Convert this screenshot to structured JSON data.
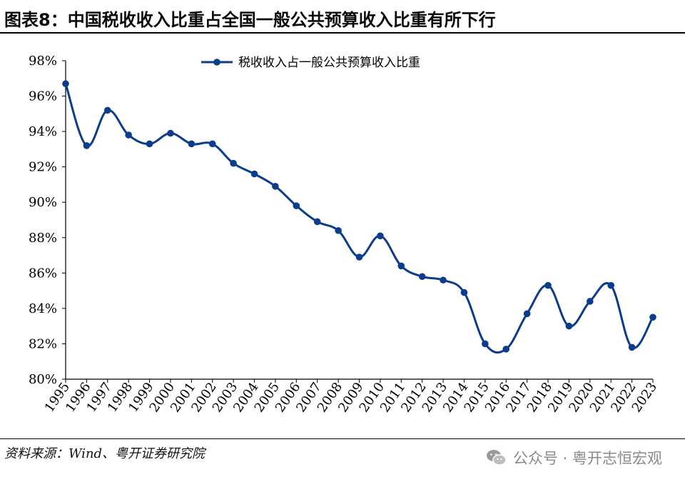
{
  "header": {
    "title": "图表8：中国税收收入比重占全国一般公共预算收入比重有所下行"
  },
  "footer": {
    "source": "资料来源：Wind、粤开证券研究院",
    "watermark": "公众号 · 粤开志恒宏观"
  },
  "colors": {
    "series": "#0b3d8c",
    "axis": "#000000"
  },
  "chart_data": {
    "type": "line",
    "title": "",
    "xlabel": "",
    "ylabel": "",
    "ylim": [
      80,
      98
    ],
    "y_ticks": [
      "80%",
      "82%",
      "84%",
      "86%",
      "88%",
      "90%",
      "92%",
      "94%",
      "96%",
      "98%"
    ],
    "y_tick_values": [
      80,
      82,
      84,
      86,
      88,
      90,
      92,
      94,
      96,
      98
    ],
    "grid": false,
    "legend_position": "top-center",
    "x": [
      "1995",
      "1996",
      "1997",
      "1998",
      "1999",
      "2000",
      "2001",
      "2002",
      "2003",
      "2004",
      "2005",
      "2006",
      "2007",
      "2008",
      "2009",
      "2010",
      "2011",
      "2012",
      "2013",
      "2014",
      "2015",
      "2016",
      "2017",
      "2018",
      "2019",
      "2020",
      "2021",
      "2022",
      "2023"
    ],
    "series": [
      {
        "name": "税收收入占一般公共预算收入比重",
        "values": [
          96.7,
          93.2,
          95.2,
          93.8,
          93.3,
          93.9,
          93.3,
          93.3,
          92.2,
          91.6,
          90.9,
          89.8,
          88.9,
          88.4,
          86.9,
          88.1,
          86.4,
          85.8,
          85.6,
          84.9,
          82.0,
          81.7,
          83.7,
          85.3,
          83.0,
          84.4,
          85.3,
          81.8,
          83.5
        ]
      }
    ]
  }
}
